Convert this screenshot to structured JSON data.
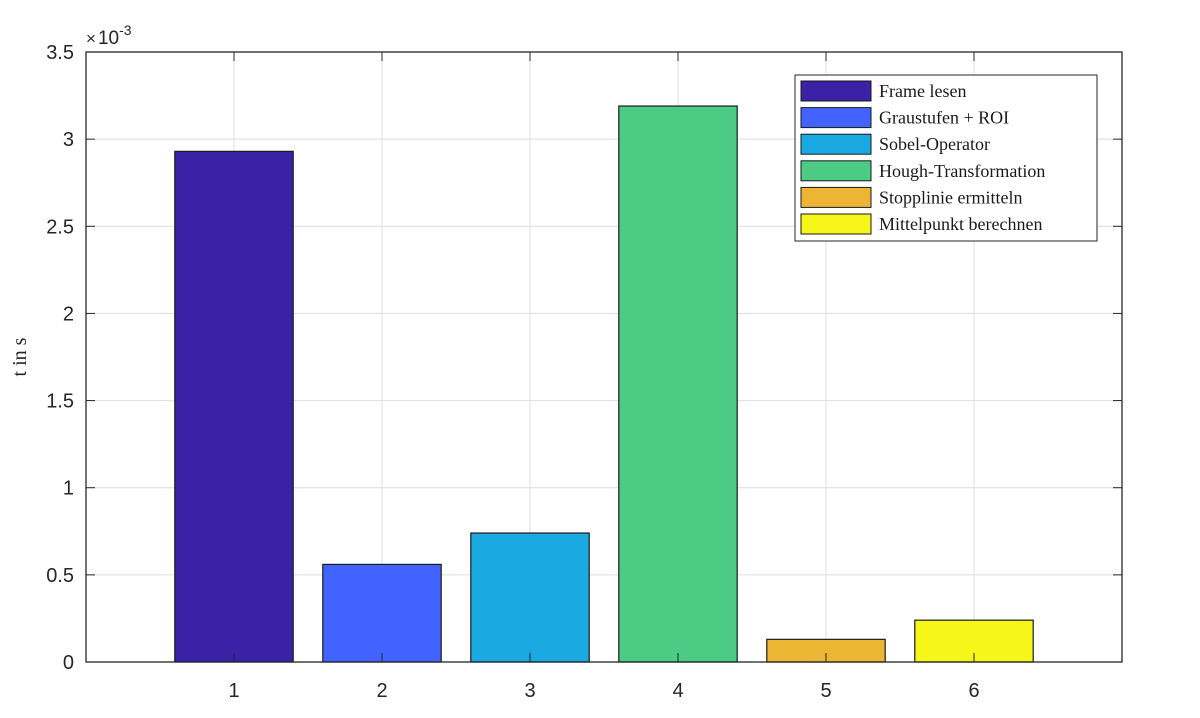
{
  "chart_data": {
    "type": "bar",
    "categories": [
      "1",
      "2",
      "3",
      "4",
      "5",
      "6"
    ],
    "values": [
      0.00293,
      0.00056,
      0.00074,
      0.00319,
      0.00013,
      0.00024
    ],
    "colors": [
      "#3a22a6",
      "#4263ff",
      "#1aa9e0",
      "#4ccb85",
      "#ecb534",
      "#f7f61b"
    ],
    "legend_entries": [
      "Frame lesen",
      "Graustufen + ROI",
      "Sobel-Operator",
      "Hough-Transformation",
      "Stopplinie ermitteln",
      "Mittelpunkt berechnen"
    ],
    "legend_position": "top-right",
    "ylabel": "t in s",
    "xlabel": "",
    "ylim": [
      0,
      0.0035
    ],
    "xlim": [
      0,
      7
    ],
    "y_ticks": [
      "0",
      "0.5",
      "1",
      "1.5",
      "2",
      "2.5",
      "3",
      "3.5"
    ],
    "x_ticks": [
      "1",
      "2",
      "3",
      "4",
      "5",
      "6"
    ],
    "y_multiplier": {
      "base": "10",
      "exponent": "-3"
    },
    "grid": true
  }
}
